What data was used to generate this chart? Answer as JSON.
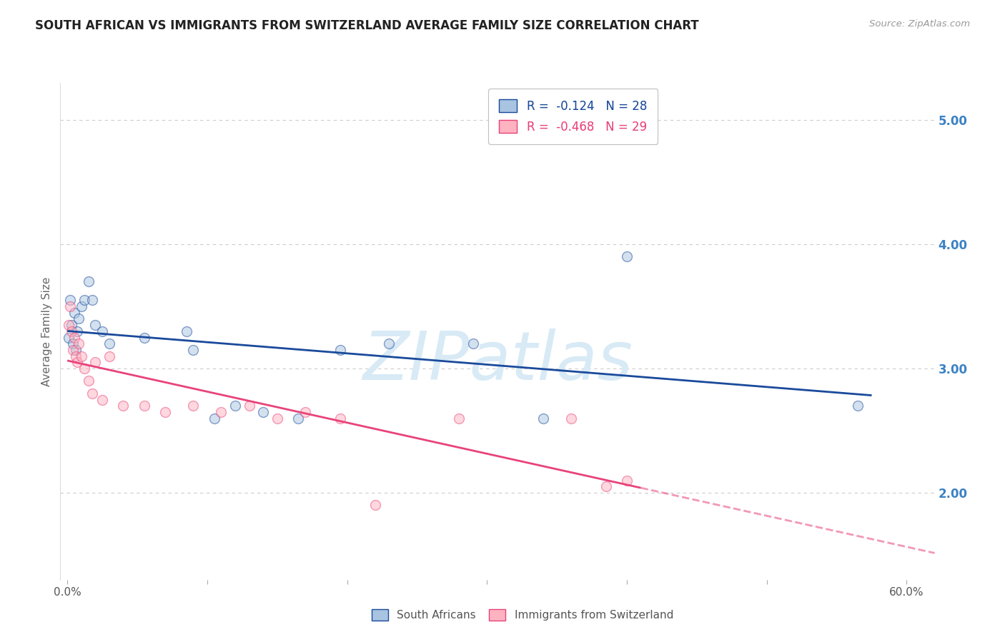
{
  "title": "SOUTH AFRICAN VS IMMIGRANTS FROM SWITZERLAND AVERAGE FAMILY SIZE CORRELATION CHART",
  "source": "Source: ZipAtlas.com",
  "ylabel": "Average Family Size",
  "watermark": "ZIPatlas",
  "right_yticks": [
    2.0,
    3.0,
    4.0,
    5.0
  ],
  "ylim": [
    1.3,
    5.3
  ],
  "xlim": [
    -0.005,
    0.62
  ],
  "series1_name": "South Africans",
  "series1_color": "#A8C4E0",
  "series1_line_color": "#1A4A9B",
  "series1_R": "-0.124",
  "series1_N": "28",
  "series1_x": [
    0.001,
    0.002,
    0.003,
    0.004,
    0.005,
    0.006,
    0.007,
    0.008,
    0.01,
    0.012,
    0.015,
    0.018,
    0.02,
    0.025,
    0.03,
    0.055,
    0.085,
    0.09,
    0.105,
    0.12,
    0.14,
    0.165,
    0.195,
    0.23,
    0.29,
    0.34,
    0.4,
    0.565
  ],
  "series1_y": [
    3.25,
    3.55,
    3.35,
    3.2,
    3.45,
    3.15,
    3.3,
    3.4,
    3.5,
    3.55,
    3.7,
    3.55,
    3.35,
    3.3,
    3.2,
    3.25,
    3.3,
    3.15,
    2.6,
    2.7,
    2.65,
    2.6,
    3.15,
    3.2,
    3.2,
    2.6,
    3.9,
    2.7
  ],
  "series2_name": "Immigrants from Switzerland",
  "series2_color": "#FFB3C0",
  "series2_line_color": "#E8437A",
  "series2_R": "-0.468",
  "series2_N": "29",
  "series2_x": [
    0.001,
    0.002,
    0.003,
    0.004,
    0.005,
    0.006,
    0.007,
    0.008,
    0.01,
    0.012,
    0.015,
    0.018,
    0.02,
    0.025,
    0.03,
    0.04,
    0.055,
    0.07,
    0.09,
    0.11,
    0.13,
    0.15,
    0.17,
    0.195,
    0.22,
    0.28,
    0.36,
    0.385,
    0.4
  ],
  "series2_y": [
    3.35,
    3.5,
    3.3,
    3.15,
    3.25,
    3.1,
    3.05,
    3.2,
    3.1,
    3.0,
    2.9,
    2.8,
    3.05,
    2.75,
    3.1,
    2.7,
    2.7,
    2.65,
    2.7,
    2.65,
    2.7,
    2.6,
    2.65,
    2.6,
    1.9,
    2.6,
    2.6,
    2.05,
    2.1
  ],
  "grid_color": "#CCCCCC",
  "bg_color": "#FFFFFF",
  "title_color": "#222222",
  "right_axis_color": "#3B82C4",
  "watermark_color": "#D8EAF5",
  "marker_size": 100,
  "marker_alpha": 0.5,
  "line_width": 2.0
}
